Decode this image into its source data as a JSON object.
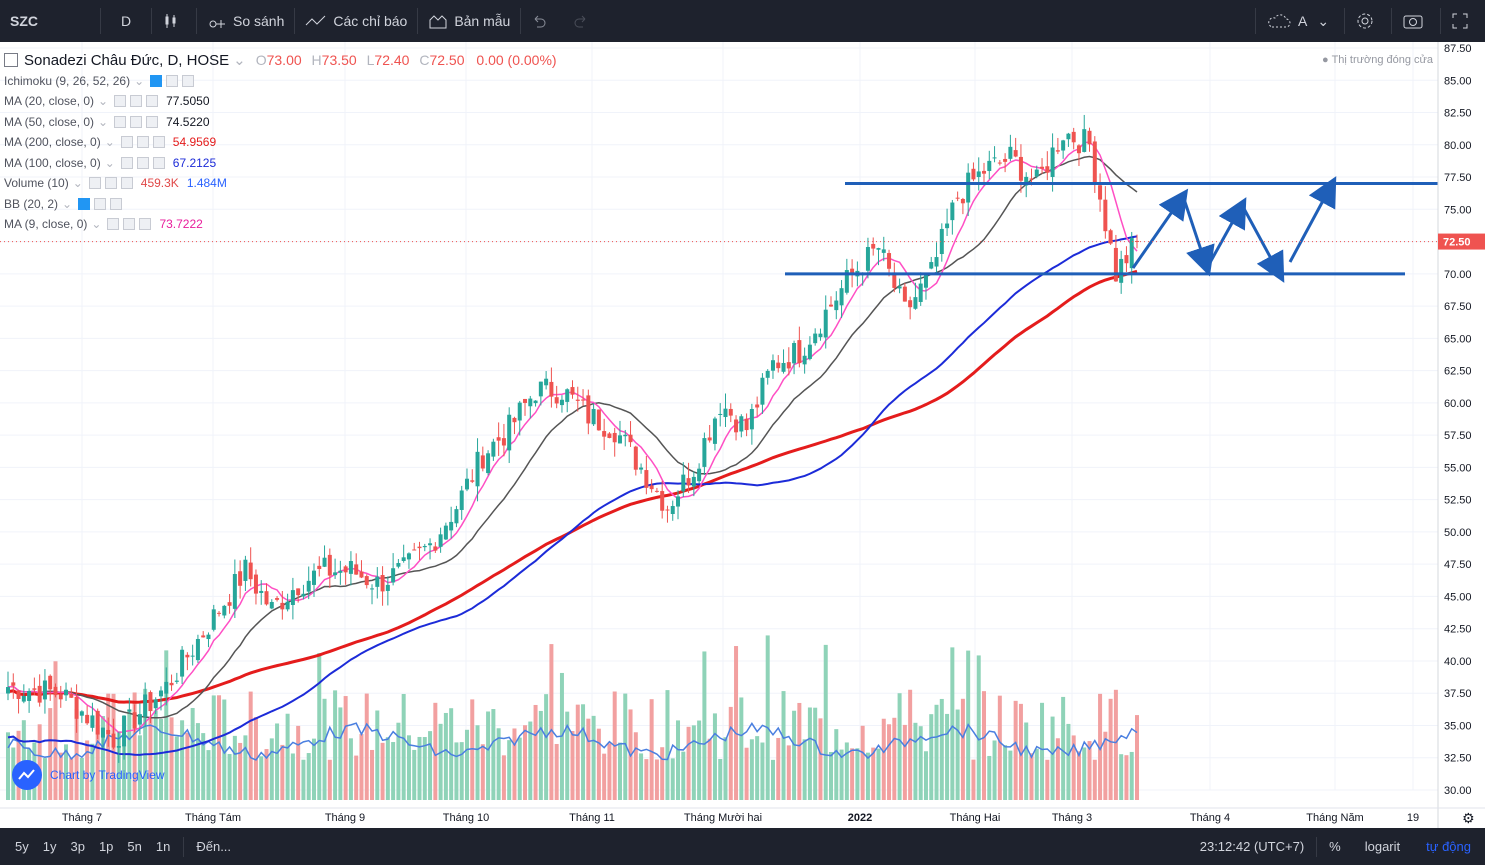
{
  "topbar": {
    "symbol": "SZC",
    "interval": "D",
    "compare": "So sánh",
    "indicators": "Các chỉ báo",
    "templates": "Bản mẫu",
    "alert_label": "A"
  },
  "legend": {
    "title": "Sonadezi Châu Đức, D, HOSE",
    "o_label": "O",
    "o": "73.00",
    "h_label": "H",
    "h": "73.50",
    "l_label": "L",
    "l": "72.40",
    "c_label": "C",
    "c": "72.50",
    "change": "0.00 (0.00%)",
    "studies": [
      {
        "name": "Ichimoku (9, 26, 52, 26)",
        "value": "",
        "value2": "",
        "color": "#131722"
      },
      {
        "name": "MA (20, close, 0)",
        "value": "77.5050",
        "value2": "",
        "color": "#131722"
      },
      {
        "name": "MA (50, close, 0)",
        "value": "74.5220",
        "value2": "",
        "color": "#131722"
      },
      {
        "name": "MA (200, close, 0)",
        "value": "54.9569",
        "value2": "",
        "color": "#e41c1c"
      },
      {
        "name": "MA (100, close, 0)",
        "value": "67.2125",
        "value2": "",
        "color": "#1c2bd8"
      },
      {
        "name": "Volume (10)",
        "value": "459.3K",
        "value2": "1.484M",
        "color": "#e04848"
      },
      {
        "name": "BB (20, 2)",
        "value": "",
        "value2": "",
        "color": "#131722"
      },
      {
        "name": "MA (9, close, 0)",
        "value": "73.7222",
        "value2": "",
        "color": "#e91e9c"
      }
    ]
  },
  "market_status": "Thị trường đóng cửa",
  "watermark": "Chart by TradingView",
  "price_badge": "72.50",
  "bottombar": {
    "ranges": [
      "5y",
      "1y",
      "3p",
      "1p",
      "5n",
      "1n"
    ],
    "goto": "Đến...",
    "clock": "23:12:42 (UTC+7)",
    "percent": "%",
    "log": "logarit",
    "auto": "tự động"
  },
  "colors": {
    "up": "#26a69a",
    "down": "#ef5350",
    "ma9": "#ff4fc4",
    "ma20": "#555555",
    "ma100": "#1c2bd8",
    "ma200": "#e41c1c",
    "vol_ma": "#4a7fe0",
    "draw": "#1f5fb8"
  },
  "chart_data": {
    "type": "candlestick",
    "symbol": "SZC",
    "y_axis": {
      "min": 30.0,
      "max": 87.5,
      "step": 2.5,
      "ticks": [
        "87.50",
        "85.00",
        "82.50",
        "80.00",
        "77.50",
        "75.00",
        "72.50",
        "70.00",
        "67.50",
        "65.00",
        "62.50",
        "60.00",
        "57.50",
        "55.00",
        "52.50",
        "50.00",
        "47.50",
        "45.00",
        "42.50",
        "40.00",
        "37.50",
        "35.00",
        "32.50",
        "30.00"
      ]
    },
    "x_axis": {
      "labels": [
        "Tháng 7",
        "Tháng Tám",
        "Tháng 9",
        "Tháng 10",
        "Tháng 11",
        "Tháng Mười hai",
        "2022",
        "Tháng Hai",
        "Tháng 3",
        "Tháng 4",
        "Tháng Năm",
        "19"
      ]
    },
    "close_anchors": [
      [
        0,
        38
      ],
      [
        10,
        37.5
      ],
      [
        20,
        34
      ],
      [
        30,
        38
      ],
      [
        40,
        44
      ],
      [
        45,
        47
      ],
      [
        50,
        44
      ],
      [
        55,
        46
      ],
      [
        60,
        47
      ],
      [
        65,
        47
      ],
      [
        70,
        46
      ],
      [
        75,
        47
      ],
      [
        80,
        49
      ],
      [
        85,
        52
      ],
      [
        90,
        56
      ],
      [
        95,
        58
      ],
      [
        100,
        61
      ],
      [
        105,
        61
      ],
      [
        110,
        59
      ],
      [
        115,
        58
      ],
      [
        120,
        55
      ],
      [
        125,
        52
      ],
      [
        130,
        55
      ],
      [
        135,
        60
      ],
      [
        140,
        58
      ],
      [
        145,
        63
      ],
      [
        150,
        64
      ],
      [
        155,
        67
      ],
      [
        160,
        70
      ],
      [
        165,
        72
      ],
      [
        170,
        67
      ],
      [
        175,
        70
      ],
      [
        180,
        76
      ],
      [
        185,
        78
      ],
      [
        190,
        79
      ],
      [
        195,
        77
      ],
      [
        200,
        81
      ],
      [
        205,
        80
      ],
      [
        210,
        70
      ],
      [
        214,
        72.5
      ]
    ],
    "ma_levels": {
      "ma9": 73.7222,
      "ma20": 77.505,
      "ma50": 74.522,
      "ma100": 67.2125,
      "ma200": 54.9569
    },
    "volume_last": "459.3K",
    "volume_ma": "1.484M",
    "horizontal_lines": [
      77.0,
      70.0
    ],
    "last_price": 72.5
  }
}
